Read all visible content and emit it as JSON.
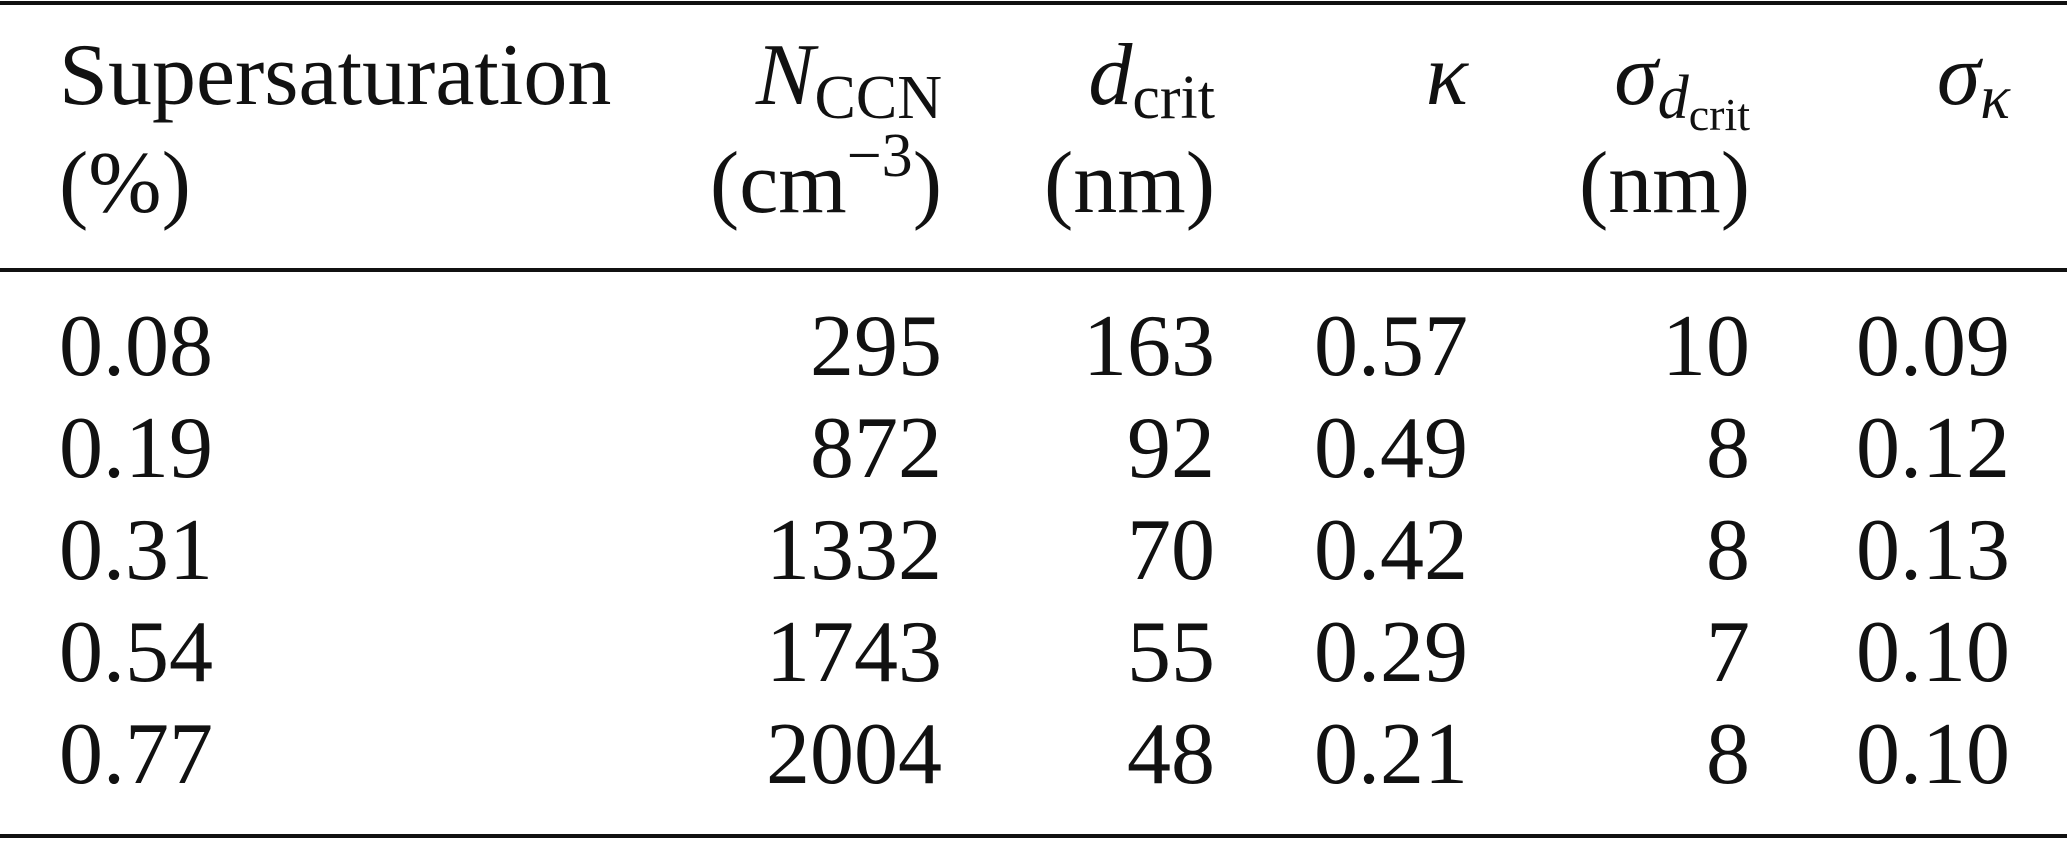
{
  "table": {
    "header": [
      {
        "symbol": "Supersaturation",
        "unit": "(%)"
      },
      {
        "symbol": "N",
        "sub": "CCN",
        "unit_pre": "(cm",
        "unit_sup": "−3",
        "unit_post": ")"
      },
      {
        "symbol": "d",
        "sub": "crit",
        "unit": "(nm)"
      },
      {
        "symbol": "κ"
      },
      {
        "symbol": "σ",
        "sub": "d",
        "subsub": "crit",
        "unit": "(nm)"
      },
      {
        "symbol": "σ",
        "sub": "κ"
      }
    ],
    "rows": [
      [
        "0.08",
        "295",
        "163",
        "0.57",
        "10",
        "0.09"
      ],
      [
        "0.19",
        "872",
        "92",
        "0.49",
        "8",
        "0.12"
      ],
      [
        "0.31",
        "1332",
        "70",
        "0.42",
        "8",
        "0.13"
      ],
      [
        "0.54",
        "1743",
        "55",
        "0.29",
        "7",
        "0.10"
      ],
      [
        "0.77",
        "2004",
        "48",
        "0.21",
        "8",
        "0.10"
      ]
    ]
  }
}
